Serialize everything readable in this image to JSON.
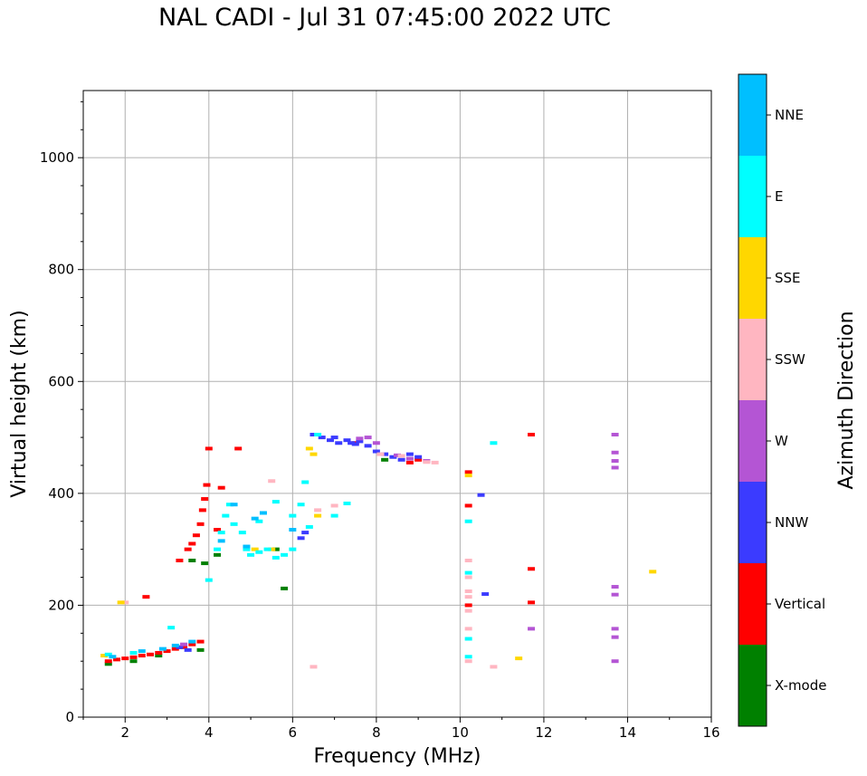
{
  "title": "NAL CADI - Jul 31 07:45:00 2022 UTC",
  "chart_data": {
    "type": "scatter",
    "title": "NAL CADI - Jul 31 07:45:00 2022 UTC",
    "xlabel": "Frequency (MHz)",
    "ylabel": "Virtual height (km)",
    "xlim": [
      1,
      16
    ],
    "ylim": [
      0,
      1120
    ],
    "grid": true,
    "xticks": [
      2,
      4,
      6,
      8,
      10,
      12,
      14,
      16
    ],
    "yticks": [
      0,
      200,
      400,
      600,
      800,
      1000
    ],
    "colorbar": {
      "label": "Azimuth Direction",
      "categories": [
        {
          "name": "X-mode",
          "color": "#008000"
        },
        {
          "name": "Vertical",
          "color": "#ff0000"
        },
        {
          "name": "NNW",
          "color": "#3b3bff"
        },
        {
          "name": "W",
          "color": "#b455d4"
        },
        {
          "name": "SSW",
          "color": "#ffb6c1"
        },
        {
          "name": "SSE",
          "color": "#ffd700"
        },
        {
          "name": "E",
          "color": "#00ffff"
        },
        {
          "name": "NNE",
          "color": "#00bfff"
        }
      ]
    },
    "series": [
      {
        "name": "X-mode",
        "points": [
          [
            1.6,
            95
          ],
          [
            2.2,
            100
          ],
          [
            2.8,
            110
          ],
          [
            3.3,
            125
          ],
          [
            3.8,
            120
          ],
          [
            3.6,
            280
          ],
          [
            3.9,
            275
          ],
          [
            4.2,
            290
          ],
          [
            5.6,
            300
          ],
          [
            5.8,
            230
          ],
          [
            8.2,
            460
          ]
        ]
      },
      {
        "name": "Vertical",
        "points": [
          [
            1.6,
            100
          ],
          [
            1.8,
            103
          ],
          [
            2.0,
            105
          ],
          [
            2.2,
            107
          ],
          [
            2.4,
            110
          ],
          [
            2.6,
            112
          ],
          [
            2.8,
            115
          ],
          [
            3.0,
            118
          ],
          [
            3.2,
            122
          ],
          [
            3.4,
            125
          ],
          [
            3.6,
            130
          ],
          [
            3.8,
            135
          ],
          [
            3.3,
            280
          ],
          [
            3.5,
            300
          ],
          [
            3.6,
            310
          ],
          [
            3.7,
            325
          ],
          [
            3.8,
            345
          ],
          [
            3.85,
            370
          ],
          [
            3.9,
            390
          ],
          [
            3.95,
            415
          ],
          [
            4.0,
            480
          ],
          [
            4.2,
            335
          ],
          [
            4.3,
            410
          ],
          [
            4.7,
            480
          ],
          [
            2.5,
            215
          ],
          [
            7.5,
            490
          ],
          [
            8.8,
            455
          ],
          [
            9.0,
            460
          ],
          [
            10.2,
            438
          ],
          [
            10.2,
            378
          ],
          [
            10.2,
            200
          ],
          [
            11.7,
            505
          ],
          [
            11.7,
            265
          ],
          [
            11.7,
            205
          ]
        ]
      },
      {
        "name": "NNW",
        "points": [
          [
            3.3,
            125
          ],
          [
            3.5,
            120
          ],
          [
            6.2,
            320
          ],
          [
            6.3,
            330
          ],
          [
            6.5,
            505
          ],
          [
            6.7,
            500
          ],
          [
            6.9,
            495
          ],
          [
            7.0,
            500
          ],
          [
            7.1,
            490
          ],
          [
            7.3,
            495
          ],
          [
            7.4,
            490
          ],
          [
            7.5,
            488
          ],
          [
            7.6,
            493
          ],
          [
            7.8,
            485
          ],
          [
            8.0,
            475
          ],
          [
            8.2,
            470
          ],
          [
            8.4,
            465
          ],
          [
            8.6,
            460
          ],
          [
            8.8,
            470
          ],
          [
            9.0,
            465
          ],
          [
            10.5,
            397
          ],
          [
            10.6,
            220
          ]
        ]
      },
      {
        "name": "W",
        "points": [
          [
            3.4,
            130
          ],
          [
            7.6,
            498
          ],
          [
            7.8,
            500
          ],
          [
            8.0,
            490
          ],
          [
            8.5,
            468
          ],
          [
            8.8,
            462
          ],
          [
            9.2,
            458
          ],
          [
            11.7,
            158
          ],
          [
            13.7,
            505
          ],
          [
            13.7,
            473
          ],
          [
            13.7,
            458
          ],
          [
            13.7,
            446
          ],
          [
            13.7,
            233
          ],
          [
            13.7,
            219
          ],
          [
            13.7,
            158
          ],
          [
            13.7,
            143
          ],
          [
            13.7,
            100
          ]
        ]
      },
      {
        "name": "SSW",
        "points": [
          [
            5.5,
            422
          ],
          [
            6.6,
            370
          ],
          [
            7.0,
            378
          ],
          [
            8.1,
            470
          ],
          [
            8.6,
            467
          ],
          [
            9.2,
            456
          ],
          [
            9.4,
            455
          ],
          [
            10.2,
            280
          ],
          [
            10.2,
            250
          ],
          [
            10.2,
            225
          ],
          [
            10.2,
            215
          ],
          [
            10.2,
            190
          ],
          [
            10.2,
            158
          ],
          [
            10.2,
            100
          ],
          [
            10.8,
            90
          ],
          [
            6.5,
            90
          ],
          [
            2.0,
            205
          ]
        ]
      },
      {
        "name": "SSE",
        "points": [
          [
            1.5,
            110
          ],
          [
            5.1,
            300
          ],
          [
            5.5,
            300
          ],
          [
            6.4,
            480
          ],
          [
            6.5,
            470
          ],
          [
            6.6,
            360
          ],
          [
            10.2,
            432
          ],
          [
            11.4,
            105
          ],
          [
            14.6,
            260
          ],
          [
            1.9,
            205
          ]
        ]
      },
      {
        "name": "E",
        "points": [
          [
            1.6,
            112
          ],
          [
            2.2,
            115
          ],
          [
            3.1,
            160
          ],
          [
            4.0,
            245
          ],
          [
            4.2,
            300
          ],
          [
            4.3,
            330
          ],
          [
            4.4,
            360
          ],
          [
            4.5,
            380
          ],
          [
            4.6,
            345
          ],
          [
            4.8,
            330
          ],
          [
            4.9,
            300
          ],
          [
            5.0,
            290
          ],
          [
            5.2,
            295
          ],
          [
            5.4,
            300
          ],
          [
            5.6,
            285
          ],
          [
            5.8,
            290
          ],
          [
            6.0,
            300
          ],
          [
            5.2,
            350
          ],
          [
            5.6,
            385
          ],
          [
            6.0,
            360
          ],
          [
            6.2,
            380
          ],
          [
            6.3,
            420
          ],
          [
            6.4,
            340
          ],
          [
            6.6,
            505
          ],
          [
            7.0,
            360
          ],
          [
            7.3,
            382
          ],
          [
            10.2,
            350
          ],
          [
            10.2,
            258
          ],
          [
            10.2,
            140
          ],
          [
            10.2,
            108
          ],
          [
            10.8,
            490
          ]
        ]
      },
      {
        "name": "NNE",
        "points": [
          [
            1.7,
            108
          ],
          [
            2.4,
            118
          ],
          [
            2.9,
            122
          ],
          [
            3.2,
            128
          ],
          [
            3.6,
            135
          ],
          [
            4.3,
            315
          ],
          [
            4.6,
            380
          ],
          [
            4.9,
            305
          ],
          [
            5.1,
            355
          ],
          [
            5.3,
            365
          ],
          [
            6.0,
            335
          ]
        ]
      }
    ]
  }
}
